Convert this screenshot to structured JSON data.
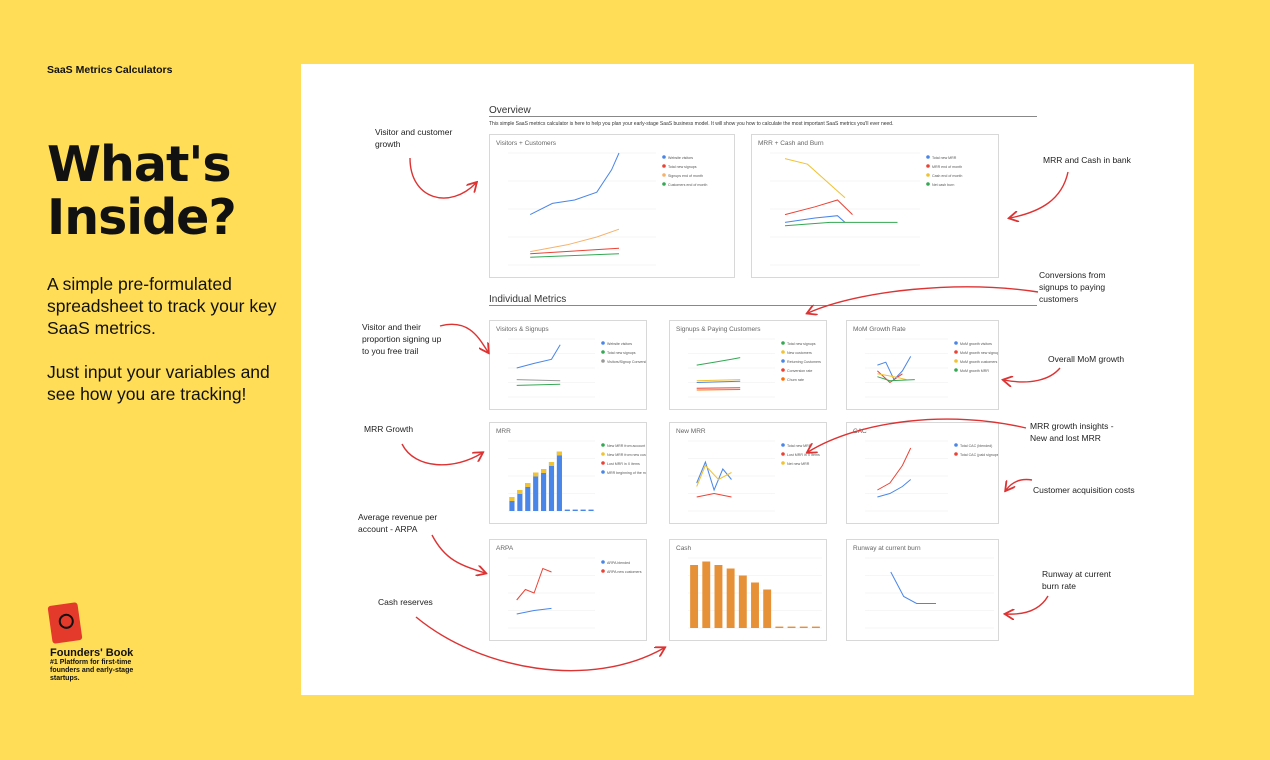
{
  "page": {
    "kicker": "SaaS Metrics Calculators",
    "headline_line1": "What's",
    "headline_line2": "Inside?",
    "blurb1": "A simple pre-formulated spreadsheet to track your key SaaS metrics.",
    "blurb2": "Just input your variables and see how you are tracking!",
    "brand_name": "Founders' Book",
    "brand_tag": "#1 Platform for first-time founders and early-stage startups."
  },
  "sheet": {
    "overview_title": "Overview",
    "intro": "This simple SaaS metrics calculator is here to help you plan your early-stage SaaS business model. It will show you how to calculate the most important SaaS metrics you'll ever need.",
    "individual_title": "Individual Metrics"
  },
  "annotations": {
    "visitor_growth": "Visitor and customer growth",
    "mrr_cash": "MRR and Cash in bank",
    "conversions": "Conversions from signups to paying customers",
    "visitor_proportion": "Visitor and their proportion signing up to you free trail",
    "overall_mom": "Overall MoM growth",
    "mrr_growth": "MRR Growth",
    "mrr_insights": "MRR growth insights - New and lost MRR",
    "cac": "Customer acquisition costs",
    "arpa": "Average revenue per account - ARPA",
    "cash_reserves": "Cash reserves",
    "runway": "Runway at current burn rate"
  },
  "charts": [
    {
      "id": "visitors-customers",
      "title": "Visitors + Customers",
      "type": "line",
      "legend": [
        "Website visitors",
        "Total new signups",
        "Signups end of month",
        "Customers end of month"
      ],
      "colors": [
        "#4a86e8",
        "#ea4335",
        "#f6b26b",
        "#34a853"
      ]
    },
    {
      "id": "mrr-cash-burn",
      "title": "MRR + Cash and Burn",
      "type": "line",
      "legend": [
        "Total new MRR",
        "MRR end of month",
        "Cash end of month",
        "Net cash burn"
      ],
      "colors": [
        "#4a86e8",
        "#ea4335",
        "#f1c232",
        "#34a853"
      ]
    },
    {
      "id": "visitors-signups",
      "title": "Visitors & Signups",
      "type": "line",
      "legend": [
        "Website visitors",
        "Total new signups",
        "Visitors/Signup Conversion Rate"
      ],
      "colors": [
        "#4a86e8",
        "#34a853",
        "#999999"
      ]
    },
    {
      "id": "signups-paying",
      "title": "Signups & Paying Customers",
      "type": "line",
      "legend": [
        "Total new signups",
        "New customers",
        "Returning Customers",
        "Conversion rate",
        "Churn rate"
      ],
      "colors": [
        "#34a853",
        "#f1c232",
        "#4a86e8",
        "#ea4335",
        "#ff6d01"
      ]
    },
    {
      "id": "mom-growth",
      "title": "MoM Growth Rate",
      "type": "line",
      "legend": [
        "MoM growth visitors",
        "MoM growth new signups",
        "MoM growth customers",
        "MoM growth MRR"
      ],
      "colors": [
        "#4a86e8",
        "#ea4335",
        "#f1c232",
        "#34a853"
      ]
    },
    {
      "id": "mrr",
      "title": "MRR",
      "type": "bar",
      "legend": [
        "New MRR from account",
        "New MRR from new customers",
        "Lost MRR in X items",
        "MRR beginning of the month"
      ],
      "colors": [
        "#34a853",
        "#f1c232",
        "#ea4335",
        "#4a86e8"
      ]
    },
    {
      "id": "new-mrr",
      "title": "New MRR",
      "type": "line",
      "legend": [
        "Total new MRR",
        "Lost MRR in X items",
        "Net new MRR"
      ],
      "colors": [
        "#4a86e8",
        "#ea4335",
        "#f1c232"
      ]
    },
    {
      "id": "cac",
      "title": "CAC",
      "type": "line",
      "legend": [
        "Total CAC (blended)",
        "Total CAC (paid signups)"
      ],
      "colors": [
        "#4a86e8",
        "#ea4335"
      ]
    },
    {
      "id": "arpa",
      "title": "ARPA",
      "type": "line",
      "legend": [
        "ARPA blended",
        "ARPA new customers"
      ],
      "colors": [
        "#4a86e8",
        "#ea4335"
      ]
    },
    {
      "id": "cash",
      "title": "Cash",
      "type": "bar",
      "legend": [],
      "colors": [
        "#e69138"
      ]
    },
    {
      "id": "runway",
      "title": "Runway at current burn",
      "type": "line",
      "legend": [],
      "colors": [
        "#4a86e8"
      ]
    }
  ]
}
